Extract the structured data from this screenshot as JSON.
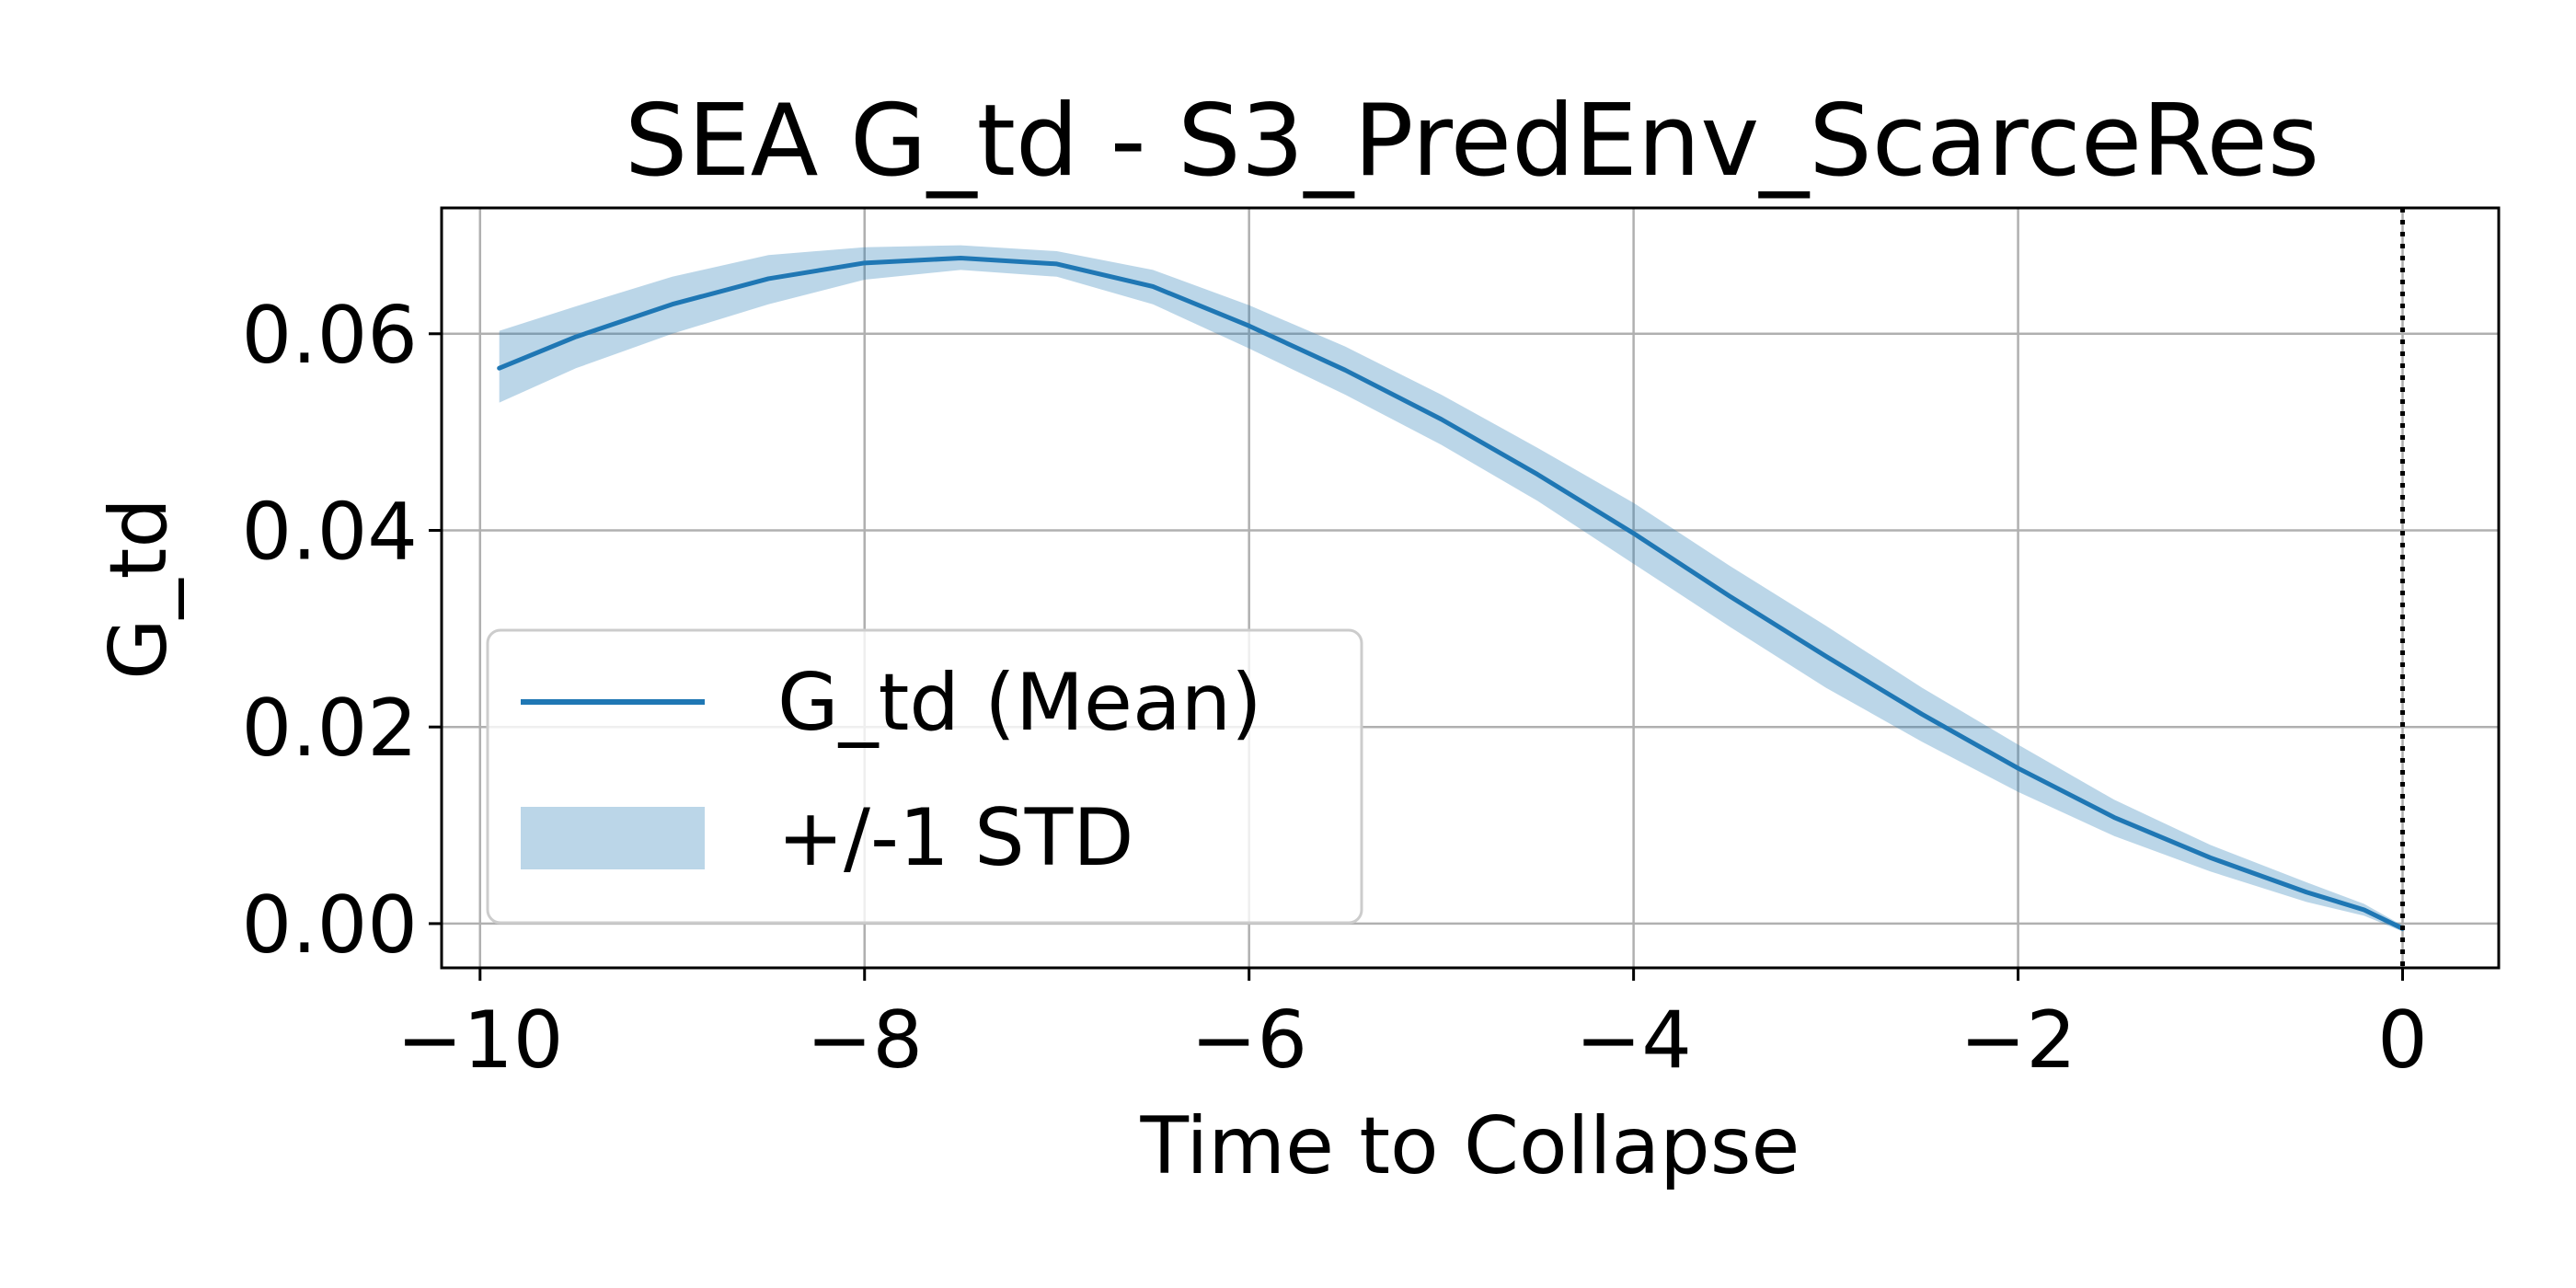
{
  "chart_data": {
    "type": "line",
    "title": "SEA G_td - S3_PredEnv_ScarceRes",
    "xlabel": "Time to Collapse",
    "ylabel": "G_td",
    "xlim": [
      -10.2,
      0.5
    ],
    "ylim": [
      -0.0045,
      0.0728
    ],
    "xticks": [
      -10,
      -8,
      -6,
      -4,
      -2,
      0
    ],
    "xtick_labels": [
      "−10",
      "−8",
      "−6",
      "−4",
      "−2",
      "0"
    ],
    "yticks": [
      0.0,
      0.02,
      0.04,
      0.06
    ],
    "ytick_labels": [
      "0.00",
      "0.02",
      "0.04",
      "0.06"
    ],
    "grid": true,
    "legend_position": "lower-left",
    "vline": {
      "x": 0,
      "style": "dotted",
      "color": "#000000"
    },
    "series": [
      {
        "name": "G_td (Mean)",
        "kind": "line",
        "color": "#1f77b4",
        "x": [
          -9.9,
          -9.5,
          -9.0,
          -8.5,
          -8.0,
          -7.5,
          -7.0,
          -6.5,
          -6.0,
          -5.5,
          -5.0,
          -4.5,
          -4.0,
          -3.5,
          -3.0,
          -2.5,
          -2.0,
          -1.5,
          -1.0,
          -0.5,
          -0.2,
          0.0
        ],
        "y": [
          0.0565,
          0.0597,
          0.063,
          0.0656,
          0.0672,
          0.0677,
          0.0671,
          0.0648,
          0.0608,
          0.0563,
          0.0513,
          0.0457,
          0.0397,
          0.0333,
          0.0272,
          0.0213,
          0.0158,
          0.0108,
          0.0067,
          0.0032,
          0.0014,
          -0.0005
        ]
      },
      {
        "name": "+/-1 STD",
        "kind": "band",
        "color": "#1f77b4",
        "opacity": 0.3,
        "x": [
          -9.9,
          -9.5,
          -9.0,
          -8.5,
          -8.0,
          -7.5,
          -7.0,
          -6.5,
          -6.0,
          -5.5,
          -5.0,
          -4.5,
          -4.0,
          -3.5,
          -3.0,
          -2.5,
          -2.0,
          -1.5,
          -1.0,
          -0.5,
          -0.2,
          0.0
        ],
        "upper": [
          0.0603,
          0.0628,
          0.0658,
          0.068,
          0.0688,
          0.069,
          0.0684,
          0.0665,
          0.0629,
          0.0587,
          0.0538,
          0.0484,
          0.0428,
          0.0364,
          0.0303,
          0.024,
          0.0182,
          0.0126,
          0.008,
          0.0042,
          0.002,
          -0.0002
        ],
        "lower": [
          0.053,
          0.0565,
          0.06,
          0.063,
          0.0655,
          0.0665,
          0.0658,
          0.063,
          0.0585,
          0.0538,
          0.0487,
          0.043,
          0.0366,
          0.0302,
          0.024,
          0.0185,
          0.0134,
          0.0089,
          0.0053,
          0.0022,
          0.0008,
          -0.0008
        ]
      }
    ]
  }
}
